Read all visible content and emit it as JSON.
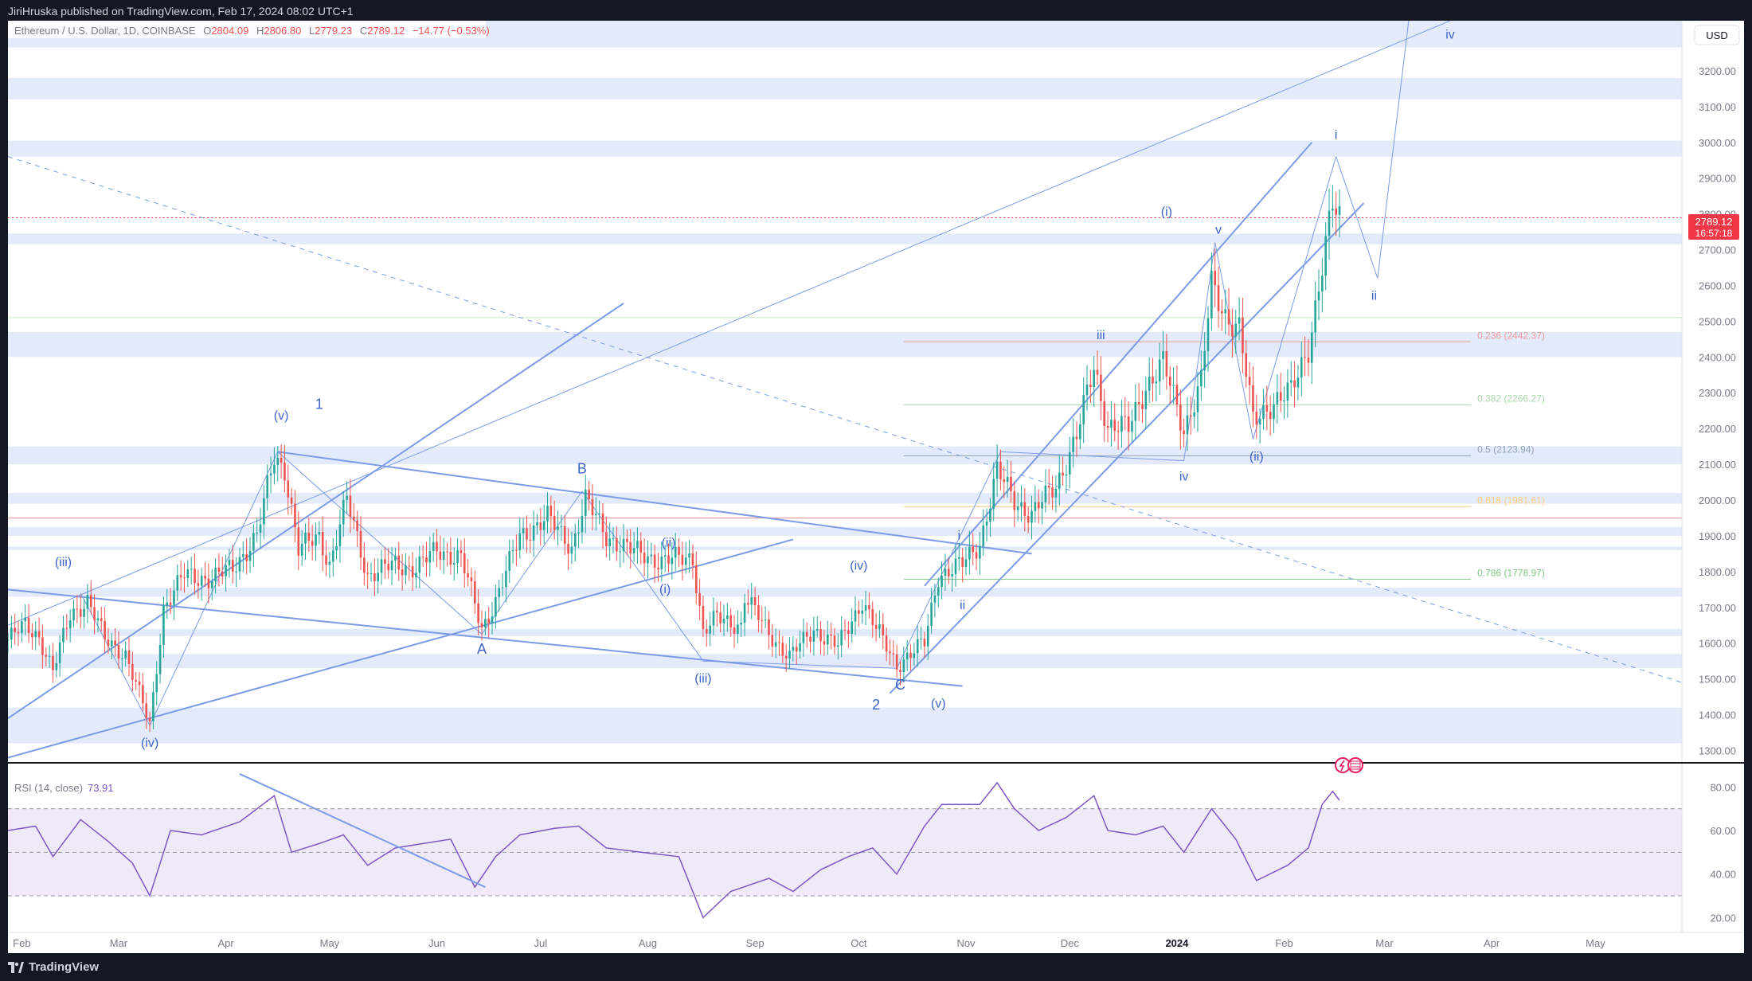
{
  "header": {
    "publish_line": "JiriHruska published on TradingView.com, Feb 17, 2024 08:02 UTC+1"
  },
  "legend": {
    "symbol": "Ethereum / U.S. Dollar, 1D, COINBASE",
    "o_label": "O",
    "o_value": "2804.09",
    "h_label": "H",
    "h_value": "2806.80",
    "l_label": "L",
    "l_value": "2779.23",
    "c_label": "C",
    "c_value": "2789.12",
    "change": "−14.77 (−0.53%)"
  },
  "currency": "USD",
  "last_price": {
    "value": "2789.12",
    "countdown": "16:57:18"
  },
  "footer": {
    "brand": "TradingView"
  },
  "colors": {
    "up": "#26a69a",
    "down": "#ef5350",
    "wave": "#7b9be6",
    "zone": "#e3ebfa",
    "rsi_line": "#7e57c2",
    "rsi_band": "#efe9f8",
    "price_tag": "#f23645"
  },
  "chart_data": [
    {
      "type": "candlestick",
      "title": "Ethereum / U.S. Dollar, 1D, COINBASE",
      "ylim": [
        1270,
        3340
      ],
      "y_ticks": [
        3200,
        3100,
        3000,
        2900,
        2800,
        2700,
        2600,
        2500,
        2400,
        2300,
        2200,
        2100,
        2000,
        1900,
        1800,
        1700,
        1600,
        1500,
        1400,
        1300
      ],
      "y_tick_labels": [
        "3200.00",
        "3100.00",
        "3000.00",
        "2900.00",
        "2800.00",
        "2700.00",
        "2600.00",
        "2500.00",
        "2400.00",
        "2300.00",
        "2200.00",
        "2100.00",
        "2000.00",
        "1900.00",
        "1800.00",
        "1700.00",
        "1600.00",
        "1500.00",
        "1400.00",
        "1300.00"
      ],
      "x_ticks": [
        "Feb",
        "Mar",
        "Apr",
        "May",
        "Jun",
        "Jul",
        "Aug",
        "Sep",
        "Oct",
        "Nov",
        "Dec",
        "2024",
        "Feb",
        "Mar",
        "Apr",
        "May"
      ],
      "x_range": [
        "2023-01-28",
        "2024-05-26"
      ],
      "x_tick_dates": [
        "2023-02-01",
        "2023-03-01",
        "2023-04-01",
        "2023-05-01",
        "2023-06-01",
        "2023-07-01",
        "2023-08-01",
        "2023-09-01",
        "2023-10-01",
        "2023-11-01",
        "2023-12-01",
        "2024-01-01",
        "2024-02-01",
        "2024-03-01",
        "2024-04-01",
        "2024-05-01"
      ],
      "grid": false,
      "price_path": [
        [
          "2023-01-28",
          1610
        ],
        [
          "2023-02-02",
          1650
        ],
        [
          "2023-02-06",
          1620
        ],
        [
          "2023-02-10",
          1520
        ],
        [
          "2023-02-15",
          1680
        ],
        [
          "2023-02-20",
          1720
        ],
        [
          "2023-02-25",
          1610
        ],
        [
          "2023-03-03",
          1570
        ],
        [
          "2023-03-10",
          1370
        ],
        [
          "2023-03-14",
          1700
        ],
        [
          "2023-03-20",
          1790
        ],
        [
          "2023-03-28",
          1780
        ],
        [
          "2023-04-03",
          1810
        ],
        [
          "2023-04-10",
          1900
        ],
        [
          "2023-04-15",
          2120
        ],
        [
          "2023-04-18",
          2090
        ],
        [
          "2023-04-22",
          1860
        ],
        [
          "2023-04-28",
          1900
        ],
        [
          "2023-05-01",
          1820
        ],
        [
          "2023-05-06",
          2000
        ],
        [
          "2023-05-12",
          1790
        ],
        [
          "2023-05-20",
          1820
        ],
        [
          "2023-05-26",
          1810
        ],
        [
          "2023-06-01",
          1860
        ],
        [
          "2023-06-08",
          1840
        ],
        [
          "2023-06-14",
          1640
        ],
        [
          "2023-06-18",
          1720
        ],
        [
          "2023-06-25",
          1900
        ],
        [
          "2023-07-03",
          1950
        ],
        [
          "2023-07-10",
          1870
        ],
        [
          "2023-07-14",
          2000
        ],
        [
          "2023-07-20",
          1900
        ],
        [
          "2023-07-27",
          1860
        ],
        [
          "2023-08-05",
          1830
        ],
        [
          "2023-08-14",
          1840
        ],
        [
          "2023-08-17",
          1630
        ],
        [
          "2023-08-21",
          1670
        ],
        [
          "2023-08-28",
          1650
        ],
        [
          "2023-08-29",
          1730
        ],
        [
          "2023-09-05",
          1630
        ],
        [
          "2023-09-11",
          1560
        ],
        [
          "2023-09-18",
          1640
        ],
        [
          "2023-09-25",
          1590
        ],
        [
          "2023-10-02",
          1720
        ],
        [
          "2023-10-06",
          1640
        ],
        [
          "2023-10-12",
          1540
        ],
        [
          "2023-10-20",
          1600
        ],
        [
          "2023-10-24",
          1790
        ],
        [
          "2023-10-31",
          1820
        ],
        [
          "2023-11-05",
          1880
        ],
        [
          "2023-11-10",
          2080
        ],
        [
          "2023-11-15",
          2000
        ],
        [
          "2023-11-20",
          1960
        ],
        [
          "2023-11-27",
          2040
        ],
        [
          "2023-12-03",
          2180
        ],
        [
          "2023-12-08",
          2370
        ],
        [
          "2023-12-12",
          2210
        ],
        [
          "2023-12-18",
          2200
        ],
        [
          "2023-12-23",
          2320
        ],
        [
          "2023-12-28",
          2380
        ],
        [
          "2024-01-03",
          2200
        ],
        [
          "2024-01-08",
          2330
        ],
        [
          "2024-01-11",
          2600
        ],
        [
          "2024-01-15",
          2520
        ],
        [
          "2024-01-19",
          2480
        ],
        [
          "2024-01-23",
          2220
        ],
        [
          "2024-01-28",
          2270
        ],
        [
          "2024-02-03",
          2300
        ],
        [
          "2024-02-08",
          2430
        ],
        [
          "2024-02-12",
          2650
        ],
        [
          "2024-02-15",
          2820
        ],
        [
          "2024-02-17",
          2789.12
        ]
      ],
      "annotations": {
        "wave_labels": [
          "(iii)",
          "(iv)",
          "(v)",
          "1",
          "A",
          "B",
          "(ii)",
          "(i)",
          "(iii)",
          "(iv)",
          "2",
          "C",
          "(v)",
          "i",
          "ii",
          "iii",
          "iv",
          "(i)",
          "v",
          "(ii)",
          "i",
          "ii",
          "iv"
        ],
        "fib_levels": [
          {
            "label": "0.236 (2442.37)",
            "price": 2442.37
          },
          {
            "label": "0.382 (2266.27)",
            "price": 2266.27
          },
          {
            "label": "0.5 (2123.94)",
            "price": 2123.94
          },
          {
            "label": "0.618 (1981.61)",
            "price": 1981.61
          },
          {
            "label": "0.786 (1778.97)",
            "price": 1778.97
          }
        ],
        "zones": [
          [
            3265,
            3340
          ],
          [
            3120,
            3180
          ],
          [
            2960,
            3005
          ],
          [
            2715,
            2745
          ],
          [
            2400,
            2470
          ],
          [
            2100,
            2150
          ],
          [
            1990,
            2020
          ],
          [
            1900,
            1925
          ],
          [
            1860,
            1870
          ],
          [
            1730,
            1755
          ],
          [
            1620,
            1640
          ],
          [
            1530,
            1570
          ],
          [
            1320,
            1420
          ]
        ]
      }
    },
    {
      "type": "line",
      "title": "RSI (14, close)",
      "last_value": "73.91",
      "ylim": [
        15,
        90
      ],
      "y_ticks": [
        80,
        60,
        40,
        20
      ],
      "y_tick_labels": [
        "80.00",
        "60.00",
        "40.00",
        "20.00"
      ],
      "bands": [
        30,
        50,
        70
      ],
      "x_range": [
        "2023-01-28",
        "2024-05-26"
      ],
      "series": [
        {
          "values": [
            [
              "2023-01-28",
              60
            ],
            [
              "2023-02-05",
              62
            ],
            [
              "2023-02-10",
              48
            ],
            [
              "2023-02-18",
              65
            ],
            [
              "2023-02-26",
              55
            ],
            [
              "2023-03-05",
              45
            ],
            [
              "2023-03-10",
              30
            ],
            [
              "2023-03-16",
              60
            ],
            [
              "2023-03-25",
              58
            ],
            [
              "2023-04-05",
              64
            ],
            [
              "2023-04-15",
              76
            ],
            [
              "2023-04-20",
              50
            ],
            [
              "2023-04-28",
              54
            ],
            [
              "2023-05-05",
              58
            ],
            [
              "2023-05-12",
              44
            ],
            [
              "2023-05-20",
              52
            ],
            [
              "2023-05-28",
              54
            ],
            [
              "2023-06-05",
              56
            ],
            [
              "2023-06-12",
              34
            ],
            [
              "2023-06-18",
              48
            ],
            [
              "2023-06-25",
              58
            ],
            [
              "2023-07-05",
              61
            ],
            [
              "2023-07-12",
              62
            ],
            [
              "2023-07-20",
              52
            ],
            [
              "2023-07-30",
              50
            ],
            [
              "2023-08-10",
              48
            ],
            [
              "2023-08-17",
              20
            ],
            [
              "2023-08-25",
              32
            ],
            [
              "2023-09-05",
              38
            ],
            [
              "2023-09-12",
              32
            ],
            [
              "2023-09-20",
              42
            ],
            [
              "2023-09-28",
              48
            ],
            [
              "2023-10-05",
              52
            ],
            [
              "2023-10-12",
              40
            ],
            [
              "2023-10-20",
              62
            ],
            [
              "2023-10-25",
              72
            ],
            [
              "2023-11-05",
              72
            ],
            [
              "2023-11-10",
              82
            ],
            [
              "2023-11-15",
              70
            ],
            [
              "2023-11-22",
              60
            ],
            [
              "2023-11-30",
              66
            ],
            [
              "2023-12-08",
              76
            ],
            [
              "2023-12-12",
              60
            ],
            [
              "2023-12-20",
              58
            ],
            [
              "2023-12-28",
              62
            ],
            [
              "2024-01-03",
              50
            ],
            [
              "2024-01-11",
              70
            ],
            [
              "2024-01-18",
              56
            ],
            [
              "2024-01-24",
              37
            ],
            [
              "2024-02-02",
              44
            ],
            [
              "2024-02-08",
              52
            ],
            [
              "2024-02-12",
              72
            ],
            [
              "2024-02-15",
              78
            ],
            [
              "2024-02-17",
              73.91
            ]
          ]
        }
      ]
    }
  ]
}
